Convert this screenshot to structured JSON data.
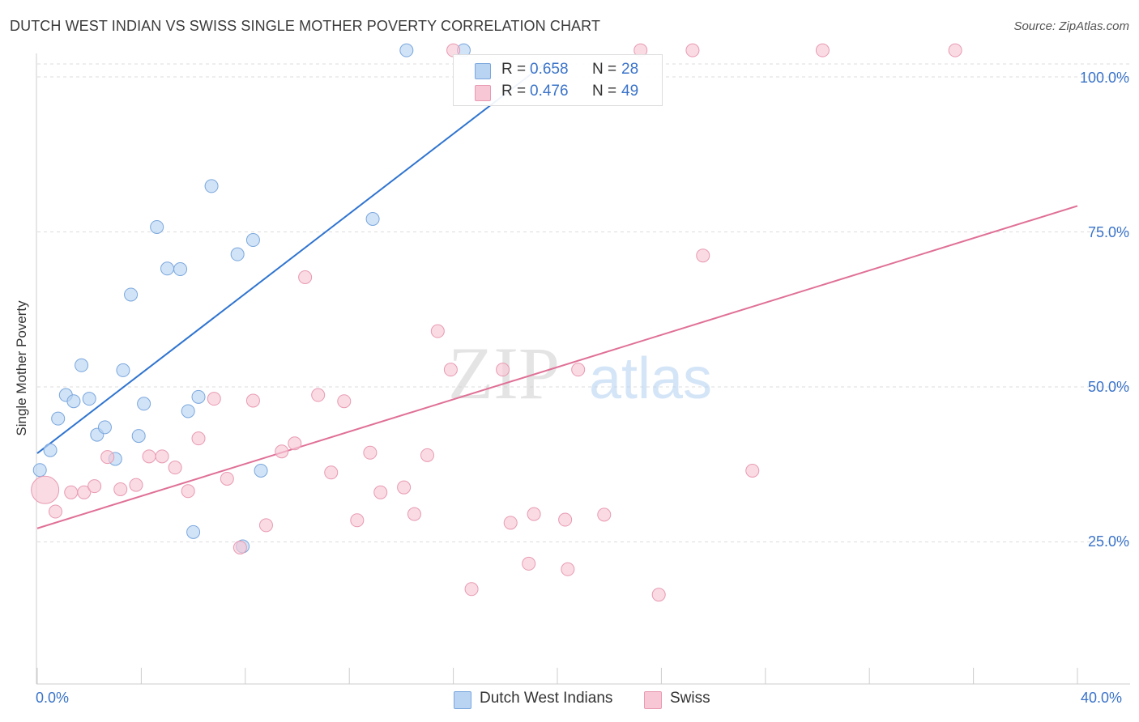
{
  "title": "DUTCH WEST INDIAN VS SWISS SINGLE MOTHER POVERTY CORRELATION CHART",
  "source": "Source: ZipAtlas.com",
  "watermark": {
    "part1": "ZIP",
    "part2": "atlas"
  },
  "colors": {
    "blue_fill": "#b9d4f3",
    "blue_stroke": "#7aa7dd",
    "blue_line": "#2f74d0",
    "pink_fill": "#f8c7d5",
    "pink_stroke": "#e89ab2",
    "pink_line": "#e07097",
    "tick_text": "#3a73c9",
    "grid": "#dddddd"
  },
  "legend": {
    "rows": [
      {
        "r_label": "R =",
        "r_value": "0.658",
        "n_label": "N =",
        "n_value": "28",
        "color": "blue"
      },
      {
        "r_label": "R =",
        "r_value": "0.476",
        "n_label": "N =",
        "n_value": "49",
        "color": "pink"
      }
    ]
  },
  "bottom_legend": [
    {
      "label": "Dutch West Indians",
      "color": "blue"
    },
    {
      "label": "Swiss",
      "color": "pink"
    }
  ],
  "chart_data": {
    "type": "scatter",
    "title": "DUTCH WEST INDIAN VS SWISS SINGLE MOTHER POVERTY CORRELATION CHART",
    "xlabel": "",
    "ylabel": "Single Mother Poverty",
    "xlim": [
      0,
      40
    ],
    "ylim": [
      0,
      100
    ],
    "x_tick_labels": [
      "0.0%",
      "40.0%"
    ],
    "y_tick_labels": [
      "100.0%",
      "75.0%",
      "50.0%",
      "25.0%"
    ],
    "y_ticks": [
      100,
      75,
      50,
      25
    ],
    "grid": true,
    "legend_position": "top-center",
    "series": [
      {
        "name": "Dutch West Indians",
        "color": "blue",
        "r": 0.658,
        "n": 28,
        "trend": {
          "x": [
            0,
            19.5
          ],
          "y": [
            37.2,
            100
          ]
        },
        "points": [
          {
            "x": 0.1,
            "y": 34.5
          },
          {
            "x": 0.5,
            "y": 37.7
          },
          {
            "x": 0.8,
            "y": 42.8
          },
          {
            "x": 1.1,
            "y": 46.6
          },
          {
            "x": 1.4,
            "y": 45.6
          },
          {
            "x": 1.7,
            "y": 51.4
          },
          {
            "x": 2.0,
            "y": 46.0
          },
          {
            "x": 2.3,
            "y": 40.2
          },
          {
            "x": 2.6,
            "y": 41.4
          },
          {
            "x": 3.0,
            "y": 36.3
          },
          {
            "x": 3.3,
            "y": 50.6
          },
          {
            "x": 3.6,
            "y": 62.8
          },
          {
            "x": 3.9,
            "y": 40.0
          },
          {
            "x": 4.1,
            "y": 45.2
          },
          {
            "x": 4.6,
            "y": 73.7
          },
          {
            "x": 5.0,
            "y": 67.0
          },
          {
            "x": 5.5,
            "y": 66.9
          },
          {
            "x": 5.8,
            "y": 44.0
          },
          {
            "x": 6.2,
            "y": 46.3
          },
          {
            "x": 6.0,
            "y": 24.5
          },
          {
            "x": 6.7,
            "y": 80.3
          },
          {
            "x": 7.7,
            "y": 69.3
          },
          {
            "x": 8.3,
            "y": 71.6
          },
          {
            "x": 7.9,
            "y": 22.2
          },
          {
            "x": 8.6,
            "y": 34.4
          },
          {
            "x": 12.9,
            "y": 75.0
          },
          {
            "x": 14.2,
            "y": 102.2
          },
          {
            "x": 16.4,
            "y": 102.2
          }
        ]
      },
      {
        "name": "Swiss",
        "color": "pink",
        "r": 0.476,
        "n": 49,
        "trend": {
          "x": [
            0,
            40
          ],
          "y": [
            25.1,
            77.1
          ]
        },
        "points": [
          {
            "x": 0.3,
            "y": 31.3
          },
          {
            "x": 0.7,
            "y": 27.8
          },
          {
            "x": 1.3,
            "y": 30.9
          },
          {
            "x": 1.8,
            "y": 30.9
          },
          {
            "x": 2.2,
            "y": 31.9
          },
          {
            "x": 2.7,
            "y": 36.6
          },
          {
            "x": 3.2,
            "y": 31.4
          },
          {
            "x": 3.8,
            "y": 32.1
          },
          {
            "x": 4.3,
            "y": 36.7
          },
          {
            "x": 4.8,
            "y": 36.7
          },
          {
            "x": 5.3,
            "y": 34.9
          },
          {
            "x": 5.8,
            "y": 31.1
          },
          {
            "x": 6.2,
            "y": 39.6
          },
          {
            "x": 6.8,
            "y": 46.0
          },
          {
            "x": 7.3,
            "y": 33.1
          },
          {
            "x": 7.8,
            "y": 22.0
          },
          {
            "x": 8.3,
            "y": 45.7
          },
          {
            "x": 8.8,
            "y": 25.6
          },
          {
            "x": 9.4,
            "y": 37.5
          },
          {
            "x": 9.9,
            "y": 38.8
          },
          {
            "x": 10.3,
            "y": 65.6
          },
          {
            "x": 10.8,
            "y": 46.6
          },
          {
            "x": 11.3,
            "y": 34.1
          },
          {
            "x": 11.8,
            "y": 45.6
          },
          {
            "x": 12.3,
            "y": 26.4
          },
          {
            "x": 12.8,
            "y": 37.3
          },
          {
            "x": 13.2,
            "y": 30.9
          },
          {
            "x": 14.1,
            "y": 31.7
          },
          {
            "x": 14.5,
            "y": 27.4
          },
          {
            "x": 15.0,
            "y": 36.9
          },
          {
            "x": 15.4,
            "y": 56.9
          },
          {
            "x": 15.9,
            "y": 50.7
          },
          {
            "x": 16.0,
            "y": 102.2
          },
          {
            "x": 16.7,
            "y": 15.3
          },
          {
            "x": 17.9,
            "y": 50.7
          },
          {
            "x": 18.2,
            "y": 26.0
          },
          {
            "x": 19.1,
            "y": 27.4
          },
          {
            "x": 18.9,
            "y": 19.4
          },
          {
            "x": 20.3,
            "y": 26.5
          },
          {
            "x": 20.4,
            "y": 18.5
          },
          {
            "x": 20.8,
            "y": 50.7
          },
          {
            "x": 21.8,
            "y": 27.3
          },
          {
            "x": 23.2,
            "y": 102.2
          },
          {
            "x": 23.9,
            "y": 14.4
          },
          {
            "x": 25.2,
            "y": 102.2
          },
          {
            "x": 25.6,
            "y": 69.1
          },
          {
            "x": 27.5,
            "y": 34.4
          },
          {
            "x": 30.2,
            "y": 102.2
          },
          {
            "x": 35.3,
            "y": 102.2
          }
        ]
      }
    ]
  }
}
